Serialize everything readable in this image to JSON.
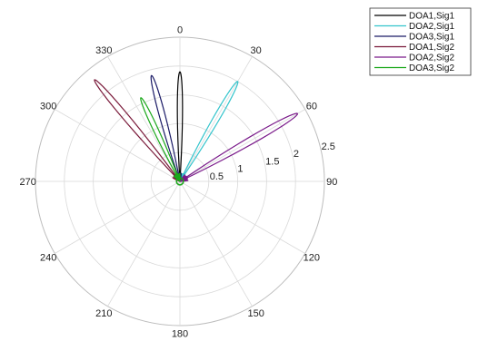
{
  "chart_data": {
    "type": "polar-line",
    "title": "",
    "theta_direction": "clockwise",
    "theta_zero": "top",
    "theta_ticks": [
      "0",
      "30",
      "60",
      "90",
      "120",
      "150",
      "180",
      "210",
      "240",
      "270",
      "300",
      "330"
    ],
    "theta_tick_values": [
      0,
      30,
      60,
      90,
      120,
      150,
      180,
      210,
      240,
      270,
      300,
      330
    ],
    "r_ticks": [
      "0.5",
      "1",
      "1.5",
      "2",
      "2.5"
    ],
    "r_tick_values": [
      0.5,
      1,
      1.5,
      2,
      2.5
    ],
    "rlim": [
      0,
      2.5
    ],
    "grid": true,
    "legend_position": "top-right",
    "series": [
      {
        "name": "DOA1,Sig1",
        "color": "#000000",
        "peak_theta": 0,
        "peak_r": 1.9,
        "width": 3.5
      },
      {
        "name": "DOA2,Sig1",
        "color": "#33c4cc",
        "peak_theta": 30,
        "peak_r": 2.0,
        "width": 4
      },
      {
        "name": "DOA3,Sig1",
        "color": "#1a1a66",
        "peak_theta": 345,
        "peak_r": 1.9,
        "width": 4
      },
      {
        "name": "DOA1,Sig2",
        "color": "#7a1a3a",
        "peak_theta": 320,
        "peak_r": 2.3,
        "width": 3.5
      },
      {
        "name": "DOA2,Sig2",
        "color": "#7a1a8a",
        "peak_theta": 60,
        "peak_r": 2.35,
        "width": 4
      },
      {
        "name": "DOA3,Sig2",
        "color": "#1aa81a",
        "peak_theta": 335,
        "peak_r": 1.6,
        "width": 4
      }
    ]
  }
}
